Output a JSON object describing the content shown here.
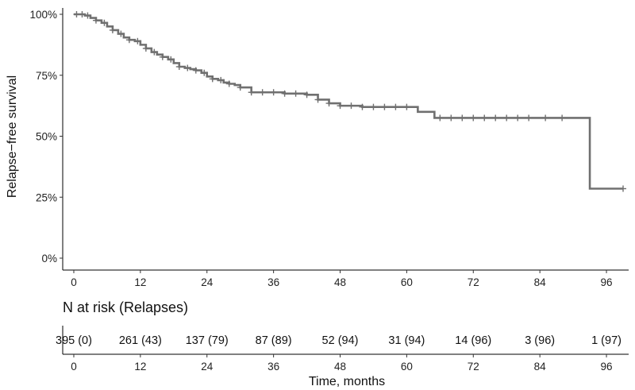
{
  "chart_data": {
    "type": "line",
    "title": "",
    "ylabel": "Relapse−free survival",
    "xlabel": "Time, months",
    "xlim": [
      -2,
      100
    ],
    "ylim": [
      0,
      1
    ],
    "x_ticks": [
      0,
      12,
      24,
      36,
      48,
      60,
      72,
      84,
      96
    ],
    "y_ticks": [
      0,
      0.25,
      0.5,
      0.75,
      1
    ],
    "y_tick_labels": [
      "0%",
      "25%",
      "50%",
      "75%",
      "100%"
    ],
    "grid": false,
    "line_color": "#707070",
    "censor_color": "#707070",
    "series": [
      {
        "x": [
          0,
          1,
          2,
          3,
          4,
          5,
          6,
          7,
          8,
          9,
          10,
          11,
          12,
          13,
          14,
          15,
          16,
          17,
          18,
          19,
          20,
          21,
          22,
          23,
          24,
          25,
          26,
          27,
          28,
          29,
          30,
          32,
          34,
          36,
          38,
          40,
          42,
          44,
          46,
          48,
          50,
          52,
          54,
          56,
          58,
          60,
          62,
          65,
          70,
          75,
          80,
          85,
          90,
          93,
          99
        ],
        "y": [
          1.0,
          1.0,
          0.995,
          0.985,
          0.975,
          0.965,
          0.95,
          0.935,
          0.92,
          0.905,
          0.895,
          0.89,
          0.875,
          0.86,
          0.845,
          0.835,
          0.825,
          0.815,
          0.8,
          0.785,
          0.78,
          0.775,
          0.77,
          0.76,
          0.745,
          0.735,
          0.73,
          0.72,
          0.715,
          0.71,
          0.7,
          0.68,
          0.68,
          0.68,
          0.675,
          0.675,
          0.67,
          0.65,
          0.635,
          0.625,
          0.625,
          0.62,
          0.62,
          0.62,
          0.62,
          0.62,
          0.6,
          0.575,
          0.575,
          0.575,
          0.575,
          0.575,
          0.575,
          0.285,
          0.285
        ]
      }
    ],
    "censor_times": [
      0.5,
      1.5,
      2.5,
      4,
      5.5,
      7,
      8.5,
      10,
      11.5,
      13,
      14.5,
      16,
      17.5,
      19,
      20.5,
      22,
      23.5,
      25,
      26.5,
      28,
      30,
      32,
      34,
      36,
      38,
      40,
      42,
      44,
      46,
      48,
      50,
      52,
      54,
      56,
      58,
      60,
      66,
      68,
      70,
      72,
      74,
      76,
      78,
      80,
      82,
      85,
      88,
      99
    ]
  },
  "risk_table": {
    "title": "N at risk (Relapses)",
    "times": [
      0,
      12,
      24,
      36,
      48,
      60,
      72,
      84,
      96
    ],
    "cells": [
      "395 (0)",
      "261 (43)",
      "137 (79)",
      "87 (89)",
      "52 (94)",
      "31 (94)",
      "14 (96)",
      "3 (96)",
      "1 (97)"
    ]
  }
}
